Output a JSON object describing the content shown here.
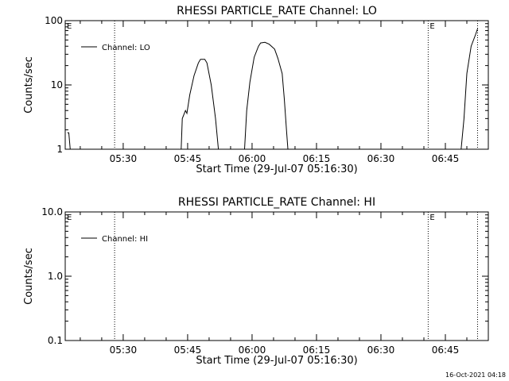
{
  "footer_timestamp": "16-Oct-2021 04:18",
  "chart_data": [
    {
      "type": "line",
      "title": "RHESSI PARTICLE_RATE Channel: LO",
      "xlabel": "Start Time (29-Jul-07 05:16:30)",
      "ylabel": "Counts/sec",
      "yscale": "log",
      "ylim": [
        1,
        100
      ],
      "xlim": [
        "05:16:30",
        "06:55:00"
      ],
      "x_ticks": [
        "05:30",
        "05:45",
        "06:00",
        "06:15",
        "06:30",
        "06:45"
      ],
      "y_ticks": [
        "1",
        "10",
        "100"
      ],
      "legend": {
        "label": "Channel: LO",
        "position": "top-left"
      },
      "markers": [
        {
          "time": "05:28:00",
          "label": ""
        },
        {
          "time": "05:16:30",
          "label": "E"
        },
        {
          "time": "06:41:00",
          "label": "E"
        },
        {
          "time": "06:52:30",
          "label": ""
        }
      ],
      "series": [
        {
          "name": "Channel: LO",
          "segments": [
            [
              [
                "05:17:00",
                1.8
              ],
              [
                "05:17:20",
                1.8
              ],
              [
                "05:17:40",
                1
              ]
            ],
            [
              [
                "05:43:30",
                1
              ],
              [
                "05:43:45",
                3
              ],
              [
                "05:44:30",
                4
              ],
              [
                "05:44:50",
                3.6
              ],
              [
                "05:45:30",
                7
              ],
              [
                "05:46:30",
                14
              ],
              [
                "05:47:30",
                22
              ],
              [
                "05:48:00",
                25
              ],
              [
                "05:49:00",
                25
              ],
              [
                "05:49:30",
                22
              ],
              [
                "05:50:30",
                10
              ],
              [
                "05:51:30",
                3
              ],
              [
                "05:52:10",
                1
              ]
            ],
            [
              [
                "05:58:15",
                1
              ],
              [
                "05:58:45",
                4
              ],
              [
                "05:59:30",
                11
              ],
              [
                "06:00:30",
                27
              ],
              [
                "06:01:30",
                40
              ],
              [
                "06:02:00",
                45
              ],
              [
                "06:03:00",
                46
              ],
              [
                "06:04:00",
                43
              ],
              [
                "06:05:15",
                36
              ],
              [
                "06:06:00",
                26
              ],
              [
                "06:07:00",
                15
              ],
              [
                "06:07:30",
                6
              ],
              [
                "06:08:00",
                2
              ],
              [
                "06:08:20",
                1
              ]
            ],
            [
              [
                "06:48:40",
                1
              ],
              [
                "06:49:20",
                3
              ],
              [
                "06:50:00",
                15
              ],
              [
                "06:51:00",
                40
              ],
              [
                "06:52:00",
                60
              ],
              [
                "06:52:30",
                75
              ]
            ]
          ]
        }
      ]
    },
    {
      "type": "line",
      "title": "RHESSI PARTICLE_RATE Channel: HI",
      "xlabel": "Start Time (29-Jul-07 05:16:30)",
      "ylabel": "Counts/sec",
      "yscale": "log",
      "ylim": [
        0.1,
        10
      ],
      "xlim": [
        "05:16:30",
        "06:55:00"
      ],
      "x_ticks": [
        "05:30",
        "05:45",
        "06:00",
        "06:15",
        "06:30",
        "06:45"
      ],
      "y_ticks": [
        "0.1",
        "1.0",
        "10.0"
      ],
      "legend": {
        "label": "Channel: HI",
        "position": "top-left"
      },
      "markers": [
        {
          "time": "05:28:00",
          "label": ""
        },
        {
          "time": "05:16:30",
          "label": "E"
        },
        {
          "time": "06:41:00",
          "label": "E"
        },
        {
          "time": "06:52:30",
          "label": ""
        }
      ],
      "series": [
        {
          "name": "Channel: HI",
          "segments": []
        }
      ]
    }
  ]
}
